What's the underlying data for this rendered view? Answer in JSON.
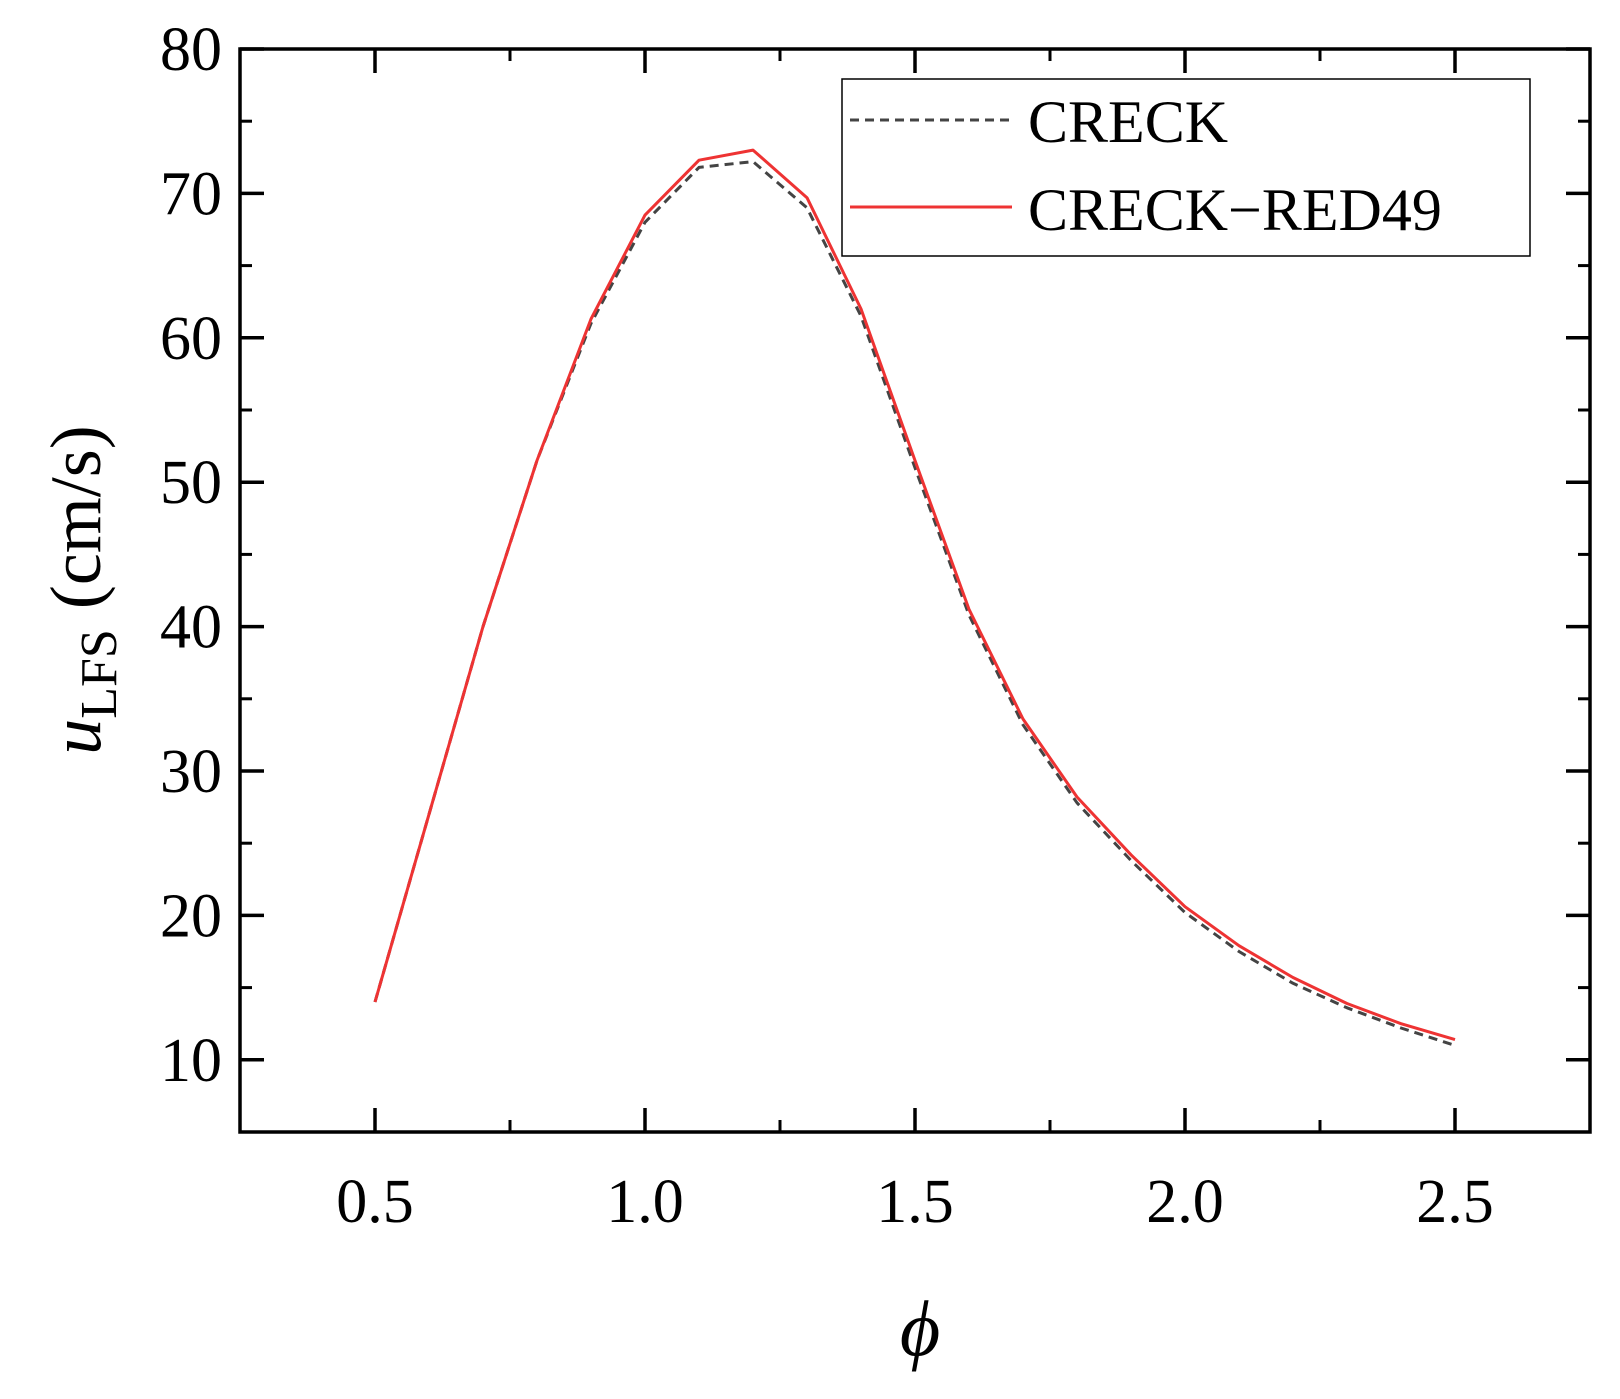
{
  "chart_data": {
    "type": "line",
    "xlabel": "ϕ",
    "ylabel_main": "u",
    "ylabel_sub": "LFS",
    "ylabel_unit": "(cm/s)",
    "xlim": [
      0.25,
      2.75
    ],
    "ylim": [
      5,
      80
    ],
    "x_ticks": [
      0.5,
      1.0,
      1.5,
      2.0,
      2.5
    ],
    "x_tick_labels": [
      "0.5",
      "1.0",
      "1.5",
      "2.0",
      "2.5"
    ],
    "y_ticks": [
      10,
      20,
      30,
      40,
      50,
      60,
      70,
      80
    ],
    "y_tick_labels": [
      "10",
      "20",
      "30",
      "40",
      "50",
      "60",
      "70",
      "80"
    ],
    "grid": false,
    "legend_position": "top-right",
    "x": [
      0.5,
      0.6,
      0.7,
      0.8,
      0.9,
      1.0,
      1.1,
      1.2,
      1.3,
      1.4,
      1.5,
      1.6,
      1.7,
      1.8,
      1.9,
      2.0,
      2.1,
      2.2,
      2.3,
      2.4,
      2.5
    ],
    "series": [
      {
        "name": "CRECK",
        "color": "#444444",
        "style": "dashed",
        "values": [
          14.0,
          27.0,
          40.0,
          51.5,
          61.0,
          68.0,
          71.8,
          72.2,
          69.0,
          61.5,
          51.0,
          40.8,
          33.2,
          27.8,
          23.8,
          20.2,
          17.5,
          15.3,
          13.6,
          12.2,
          11.0
        ]
      },
      {
        "name": "CRECK−RED49",
        "color": "#ee3333",
        "style": "solid",
        "values": [
          14.0,
          27.0,
          40.0,
          51.5,
          61.3,
          68.5,
          72.3,
          73.0,
          69.7,
          62.0,
          51.5,
          41.2,
          33.6,
          28.2,
          24.2,
          20.6,
          17.9,
          15.7,
          13.9,
          12.5,
          11.4
        ]
      }
    ]
  }
}
